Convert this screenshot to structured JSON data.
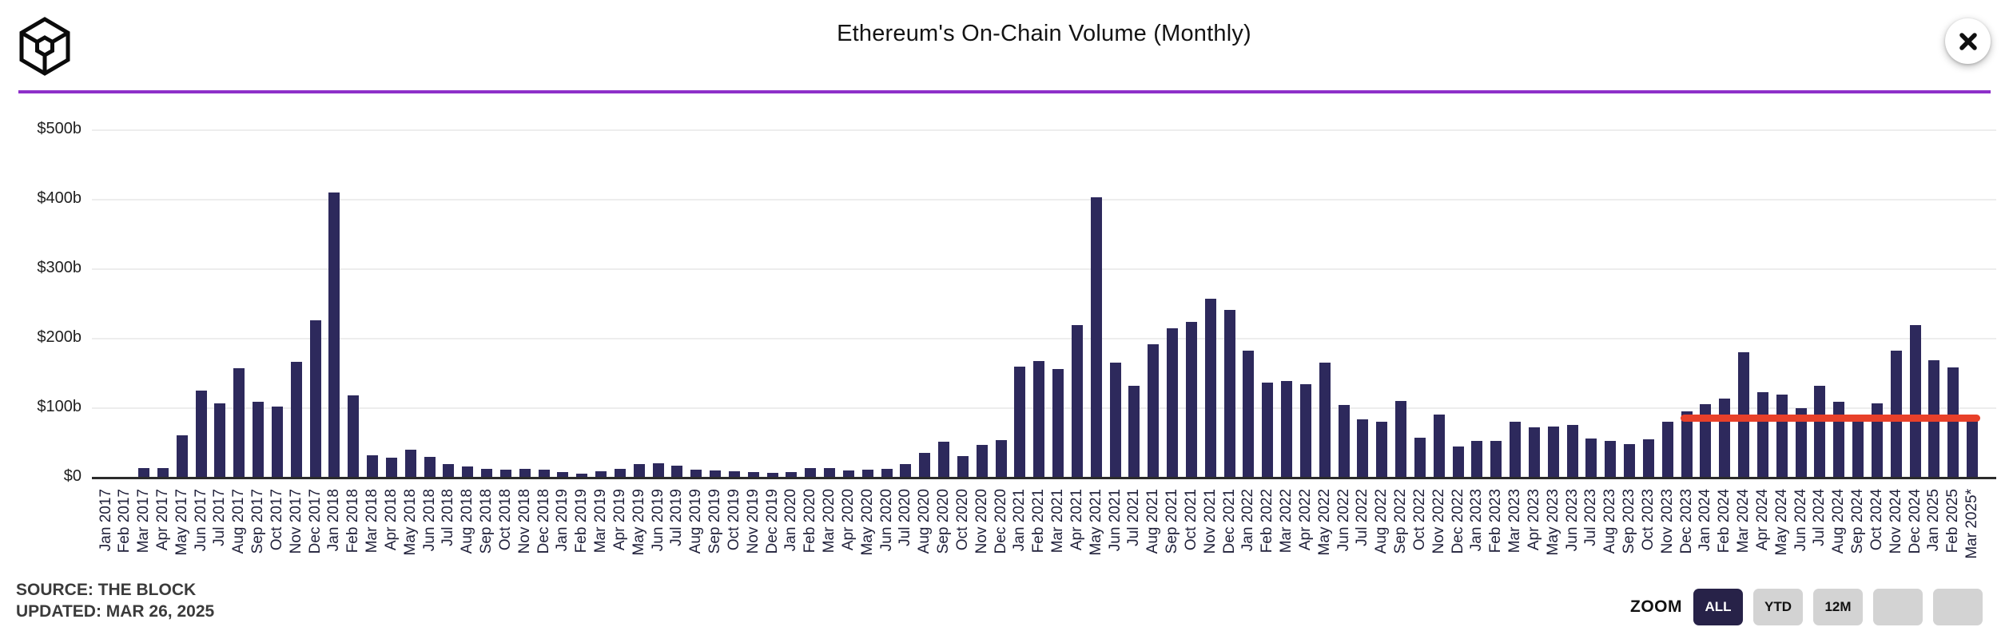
{
  "header": {
    "title": "Ethereum's On-Chain Volume (Monthly)",
    "accent_line_color": "#8e30c9"
  },
  "y_axis": {
    "ticks": [
      {
        "label": "$500b",
        "value": 500
      },
      {
        "label": "$400b",
        "value": 400
      },
      {
        "label": "$300b",
        "value": 300
      },
      {
        "label": "$200b",
        "value": 200
      },
      {
        "label": "$100b",
        "value": 100
      },
      {
        "label": "$0",
        "value": 0
      }
    ]
  },
  "chart_data": {
    "type": "bar",
    "title": "Ethereum's On-Chain Volume (Monthly)",
    "ylabel": "USD billions",
    "xlabel": "",
    "ylim": [
      0,
      500
    ],
    "grid": true,
    "bar_color": "#2d295c",
    "categories": [
      "Jan 2017",
      "Feb 2017",
      "Mar 2017",
      "Apr 2017",
      "May 2017",
      "Jun 2017",
      "Jul 2017",
      "Aug 2017",
      "Sep 2017",
      "Oct 2017",
      "Nov 2017",
      "Dec 2017",
      "Jan 2018",
      "Feb 2018",
      "Mar 2018",
      "Apr 2018",
      "May 2018",
      "Jun 2018",
      "Jul 2018",
      "Aug 2018",
      "Sep 2018",
      "Oct 2018",
      "Nov 2018",
      "Dec 2018",
      "Jan 2019",
      "Feb 2019",
      "Mar 2019",
      "Apr 2019",
      "May 2019",
      "Jun 2019",
      "Jul 2019",
      "Aug 2019",
      "Sep 2019",
      "Oct 2019",
      "Nov 2019",
      "Dec 2019",
      "Jan 2020",
      "Feb 2020",
      "Mar 2020",
      "Apr 2020",
      "May 2020",
      "Jun 2020",
      "Jul 2020",
      "Aug 2020",
      "Sep 2020",
      "Oct 2020",
      "Nov 2020",
      "Dec 2020",
      "Jan 2021",
      "Feb 2021",
      "Mar 2021",
      "Apr 2021",
      "May 2021",
      "Jun 2021",
      "Jul 2021",
      "Aug 2021",
      "Sep 2021",
      "Oct 2021",
      "Nov 2021",
      "Dec 2021",
      "Jan 2022",
      "Feb 2022",
      "Mar 2022",
      "Apr 2022",
      "May 2022",
      "Jun 2022",
      "Jul 2022",
      "Aug 2022",
      "Sep 2022",
      "Oct 2022",
      "Nov 2022",
      "Dec 2022",
      "Jan 2023",
      "Feb 2023",
      "Mar 2023",
      "Apr 2023",
      "May 2023",
      "Jun 2023",
      "Jul 2023",
      "Aug 2023",
      "Sep 2023",
      "Oct 2023",
      "Nov 2023",
      "Dec 2023",
      "Jan 2024",
      "Feb 2024",
      "Mar 2024",
      "Apr 2024",
      "May 2024",
      "Jun 2024",
      "Jul 2024",
      "Aug 2024",
      "Sep 2024",
      "Oct 2024",
      "Nov 2024",
      "Dec 2024",
      "Jan 2025",
      "Feb 2025",
      "Mar 2025*"
    ],
    "values": [
      1,
      1,
      14,
      14,
      61,
      125,
      107,
      158,
      109,
      102,
      167,
      226,
      410,
      118,
      32,
      29,
      40,
      30,
      20,
      16,
      13,
      12,
      13,
      12,
      8,
      6,
      9,
      13,
      20,
      21,
      17,
      11,
      10,
      9,
      8,
      7,
      8,
      14,
      14,
      10,
      11,
      13,
      19,
      36,
      52,
      31,
      47,
      54,
      160,
      168,
      156,
      220,
      404,
      165,
      132,
      192,
      215,
      224,
      258,
      241,
      183,
      137,
      139,
      135,
      165,
      105,
      84,
      80,
      110,
      57,
      91,
      45,
      53,
      53,
      81,
      72,
      74,
      76,
      56,
      53,
      48,
      55,
      80,
      95,
      106,
      114,
      180,
      123,
      120,
      100,
      132,
      109,
      80,
      107,
      183,
      220,
      169,
      159,
      85
    ],
    "annotation_line": {
      "color": "#e8402a",
      "value": 86,
      "start_category": "Dec 2023",
      "end_category": "Mar 2025*"
    },
    "legend": []
  },
  "footer": {
    "source": "SOURCE: THE BLOCK",
    "updated": "UPDATED: MAR 26, 2025"
  },
  "zoom_controls": {
    "label": "ZOOM",
    "buttons": [
      {
        "label": "ALL",
        "active": true
      },
      {
        "label": "YTD",
        "active": false
      },
      {
        "label": "12M",
        "active": false
      },
      {
        "label": "",
        "active": false
      },
      {
        "label": "",
        "active": false
      }
    ]
  }
}
